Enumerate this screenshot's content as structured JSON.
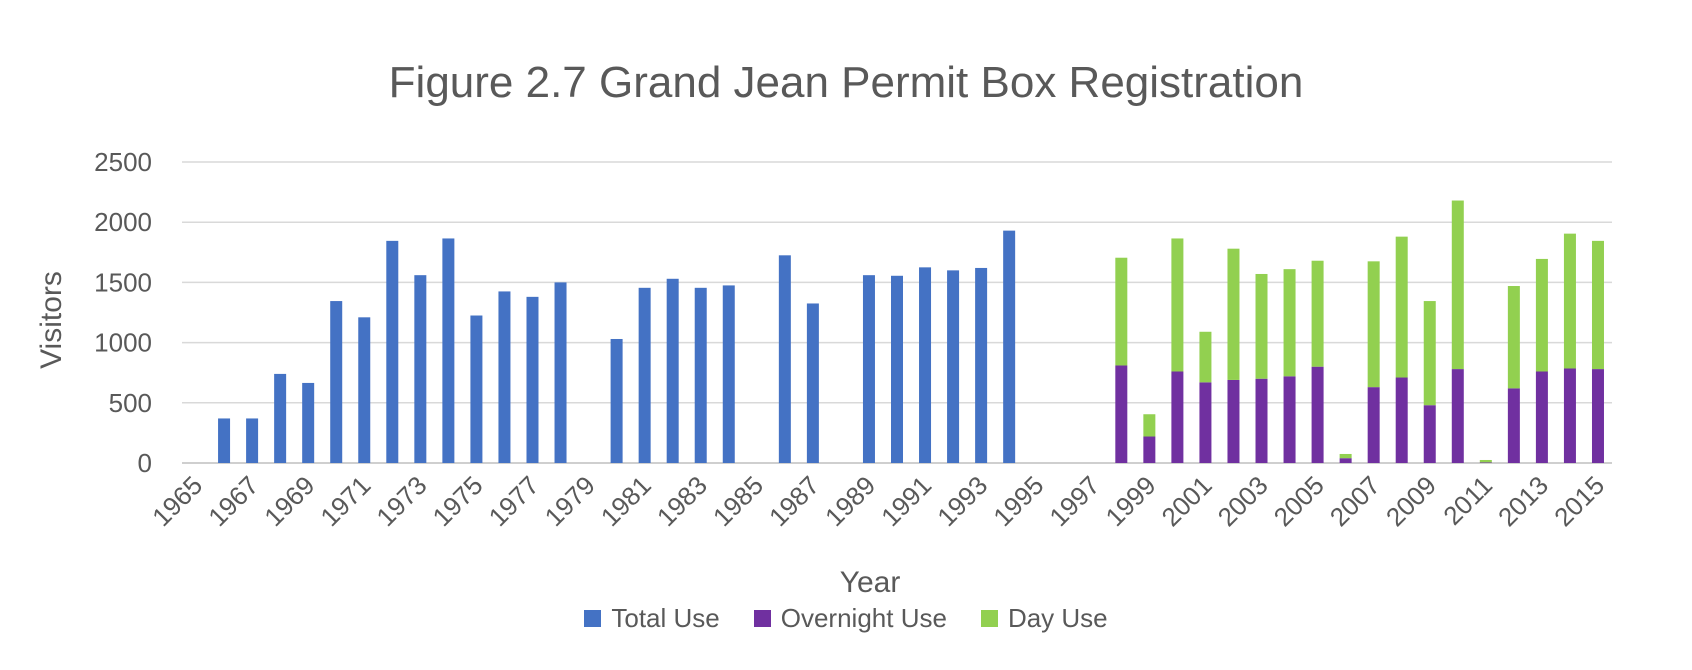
{
  "chart_data": {
    "type": "bar",
    "title": "Figure 2.7 Grand Jean Permit Box Registration",
    "xlabel": "Year",
    "ylabel": "Visitors",
    "ylim": [
      0,
      2500
    ],
    "yticks": [
      "0",
      "500",
      "1000",
      "1500",
      "2000",
      "2500"
    ],
    "grid": true,
    "legend_position": "bottom",
    "categories": [
      1965,
      1966,
      1967,
      1968,
      1969,
      1970,
      1971,
      1972,
      1973,
      1974,
      1975,
      1976,
      1977,
      1978,
      1979,
      1980,
      1981,
      1982,
      1983,
      1984,
      1985,
      1986,
      1987,
      1988,
      1989,
      1990,
      1991,
      1992,
      1993,
      1994,
      1995,
      1996,
      1997,
      1998,
      1999,
      2000,
      2001,
      2002,
      2003,
      2004,
      2005,
      2006,
      2007,
      2008,
      2009,
      2010,
      2011,
      2012,
      2013,
      2014,
      2015
    ],
    "x_tick_labels": [
      "1965",
      "1967",
      "1969",
      "1971",
      "1973",
      "1975",
      "1977",
      "1979",
      "1981",
      "1983",
      "1985",
      "1987",
      "1989",
      "1991",
      "1993",
      "1995",
      "1997",
      "1999",
      "2001",
      "2003",
      "2005",
      "2007",
      "2009",
      "2011",
      "2013",
      "2015"
    ],
    "series": [
      {
        "name": "Total Use",
        "color": "#4472C4",
        "stacked": false,
        "values": [
          null,
          370,
          370,
          740,
          665,
          1345,
          1210,
          1845,
          1560,
          1865,
          1225,
          1425,
          1380,
          1500,
          null,
          1030,
          1455,
          1530,
          1455,
          1475,
          null,
          1725,
          1325,
          null,
          1560,
          1555,
          1625,
          1600,
          1620,
          1930,
          null,
          null,
          null,
          null,
          null,
          null,
          null,
          null,
          null,
          null,
          null,
          null,
          null,
          null,
          null,
          null,
          null,
          null,
          null,
          null,
          null
        ]
      },
      {
        "name": "Overnight Use",
        "color": "#7030A0",
        "stacked": true,
        "values": [
          null,
          null,
          null,
          null,
          null,
          null,
          null,
          null,
          null,
          null,
          null,
          null,
          null,
          null,
          null,
          null,
          null,
          null,
          null,
          null,
          null,
          null,
          null,
          null,
          null,
          null,
          null,
          null,
          null,
          null,
          null,
          null,
          null,
          810,
          220,
          760,
          670,
          690,
          700,
          720,
          800,
          40,
          630,
          710,
          480,
          780,
          5,
          620,
          760,
          785,
          780
        ]
      },
      {
        "name": "Day Use",
        "color": "#92D050",
        "stacked": true,
        "values": [
          null,
          null,
          null,
          null,
          null,
          null,
          null,
          null,
          null,
          null,
          null,
          null,
          null,
          null,
          null,
          null,
          null,
          null,
          null,
          null,
          null,
          null,
          null,
          null,
          null,
          null,
          null,
          null,
          null,
          null,
          null,
          null,
          null,
          895,
          185,
          1105,
          420,
          1090,
          870,
          890,
          880,
          35,
          1045,
          1170,
          865,
          1400,
          20,
          850,
          935,
          1120,
          1065
        ]
      }
    ]
  }
}
